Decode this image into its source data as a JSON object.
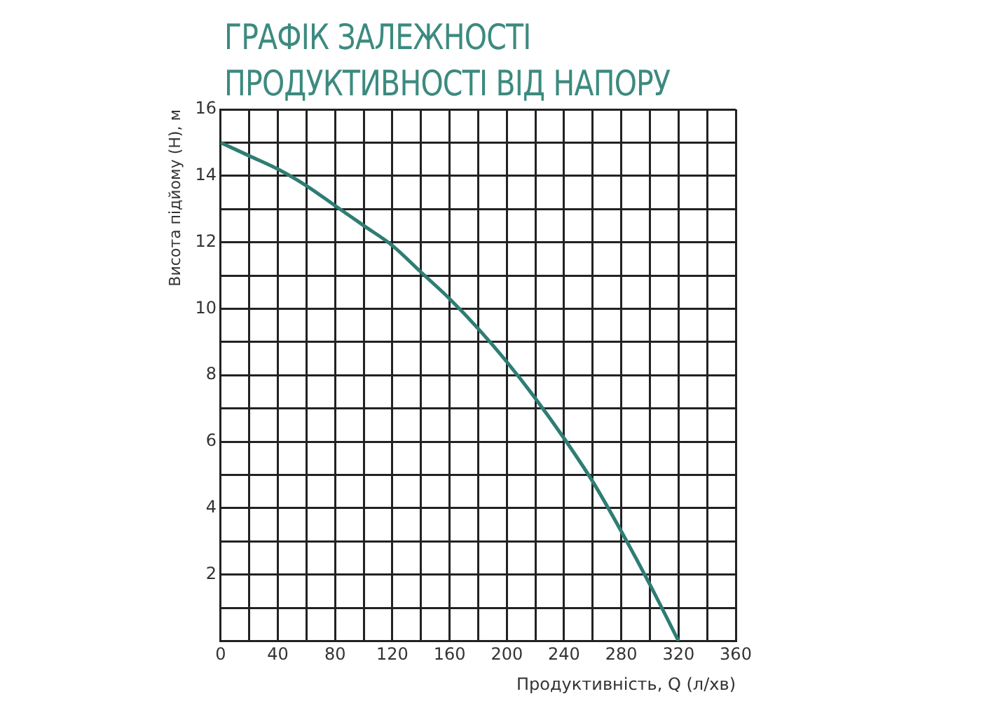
{
  "chart_data": {
    "type": "line",
    "title": "ГРАФІК ЗАЛЕЖНОСТІ ПРОДУКТИВНОСТІ ВІД НАПОРУ",
    "xlabel": "Продуктивність, Q (л/хв)",
    "ylabel": "Висота підйому (Н), м",
    "x": [
      0,
      20,
      40,
      60,
      80,
      100,
      120,
      140,
      160,
      180,
      200,
      220,
      240,
      260,
      280,
      300,
      320
    ],
    "series": [
      {
        "color": "#2e7d74",
        "values": [
          15,
          14.6,
          14.2,
          13.7,
          13.1,
          12.5,
          11.9,
          11.1,
          10.3,
          9.4,
          8.4,
          7.3,
          6.1,
          4.8,
          3.3,
          1.7,
          0
        ]
      }
    ],
    "xlim": [
      0,
      360
    ],
    "xticks": [
      0,
      {
        "value": 20,
        "label": null
      },
      40,
      {
        "value": 60,
        "label": null
      },
      80,
      {
        "value": 100,
        "label": null
      },
      120,
      {
        "value": 140,
        "label": null
      },
      160,
      {
        "value": 180,
        "label": null
      },
      200,
      {
        "value": 220,
        "label": null
      },
      240,
      {
        "value": 260,
        "label": null
      },
      280,
      {
        "value": 300,
        "label": null
      },
      320,
      {
        "value": 340,
        "label": null
      },
      360
    ],
    "ylim": [
      0,
      16
    ],
    "yticks": [
      {
        "value": 0,
        "label": null
      },
      {
        "value": 1,
        "label": null
      },
      2,
      {
        "value": 3,
        "label": null
      },
      4,
      {
        "value": 5,
        "label": null
      },
      6,
      {
        "value": 7,
        "label": null
      },
      8,
      {
        "value": 9,
        "label": null
      },
      10,
      {
        "value": 11,
        "label": null
      },
      12,
      {
        "value": 13,
        "label": null
      },
      14,
      {
        "value": 15,
        "label": null
      },
      16
    ],
    "grid": true,
    "legend": false
  }
}
